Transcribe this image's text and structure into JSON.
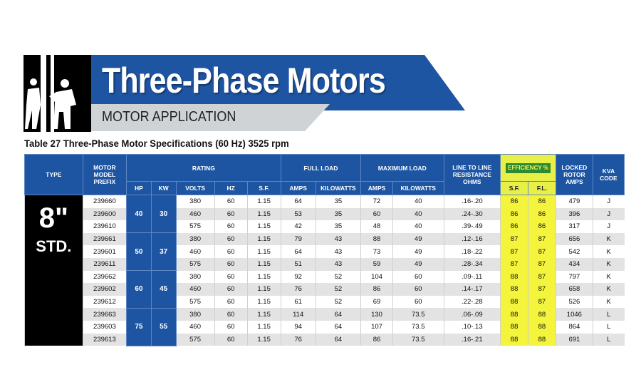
{
  "banner": {
    "title": "Three-Phase Motors",
    "subtitle": "MOTOR APPLICATION",
    "person_icon": "worker-silhouette-icon",
    "colors": {
      "blue": "#1d55a3",
      "grey": "#cfd3d6",
      "black": "#000000"
    }
  },
  "table_caption": "Table 27 Three-Phase Motor Specifications (60 Hz) 3525 rpm",
  "headers": {
    "type": "TYPE",
    "model": "MOTOR MODEL PREFIX",
    "rating": "RATING",
    "full_load": "FULL LOAD",
    "max_load": "MAXIMUM LOAD",
    "resistance": "LINE TO LINE RESISTANCE OHMS",
    "efficiency": "EFFICIENCY %",
    "locked_rotor": "LOCKED ROTOR AMPS",
    "kva": "KVA CODE",
    "hp": "HP",
    "kw": "KW",
    "volts": "VOLTS",
    "hz": "HZ",
    "sf": "S.F.",
    "fl_amps": "AMPS",
    "fl_kw": "KILOWATTS",
    "ml_amps": "AMPS",
    "ml_kw": "KILOWATTS",
    "eff_sf": "S.F.",
    "eff_fl": "F.L."
  },
  "type": {
    "size": "8\"",
    "std": "STD."
  },
  "highlight_color": "#f4f43c",
  "groups": [
    {
      "hp": "40",
      "kw": "30"
    },
    {
      "hp": "50",
      "kw": "37"
    },
    {
      "hp": "60",
      "kw": "45"
    },
    {
      "hp": "75",
      "kw": "55"
    }
  ],
  "rows": [
    {
      "model": "239660",
      "volts": "380",
      "hz": "60",
      "sf": "1.15",
      "fl_amps": "64",
      "fl_kw": "35",
      "ml_amps": "72",
      "ml_kw": "40",
      "ohms": ".16-.20",
      "eff_sf": "86",
      "eff_fl": "86",
      "lra": "479",
      "kva": "J"
    },
    {
      "model": "239600",
      "volts": "460",
      "hz": "60",
      "sf": "1.15",
      "fl_amps": "53",
      "fl_kw": "35",
      "ml_amps": "60",
      "ml_kw": "40",
      "ohms": ".24-.30",
      "eff_sf": "86",
      "eff_fl": "86",
      "lra": "396",
      "kva": "J"
    },
    {
      "model": "239610",
      "volts": "575",
      "hz": "60",
      "sf": "1.15",
      "fl_amps": "42",
      "fl_kw": "35",
      "ml_amps": "48",
      "ml_kw": "40",
      "ohms": ".39-.49",
      "eff_sf": "86",
      "eff_fl": "86",
      "lra": "317",
      "kva": "J"
    },
    {
      "model": "239661",
      "volts": "380",
      "hz": "60",
      "sf": "1.15",
      "fl_amps": "79",
      "fl_kw": "43",
      "ml_amps": "88",
      "ml_kw": "49",
      "ohms": ".12-.16",
      "eff_sf": "87",
      "eff_fl": "87",
      "lra": "656",
      "kva": "K"
    },
    {
      "model": "239601",
      "volts": "460",
      "hz": "60",
      "sf": "1.15",
      "fl_amps": "64",
      "fl_kw": "43",
      "ml_amps": "73",
      "ml_kw": "49",
      "ohms": ".18-.22",
      "eff_sf": "87",
      "eff_fl": "87",
      "lra": "542",
      "kva": "K"
    },
    {
      "model": "239611",
      "volts": "575",
      "hz": "60",
      "sf": "1.15",
      "fl_amps": "51",
      "fl_kw": "43",
      "ml_amps": "59",
      "ml_kw": "49",
      "ohms": ".28-.34",
      "eff_sf": "87",
      "eff_fl": "87",
      "lra": "434",
      "kva": "K"
    },
    {
      "model": "239662",
      "volts": "380",
      "hz": "60",
      "sf": "1.15",
      "fl_amps": "92",
      "fl_kw": "52",
      "ml_amps": "104",
      "ml_kw": "60",
      "ohms": ".09-.11",
      "eff_sf": "88",
      "eff_fl": "87",
      "lra": "797",
      "kva": "K"
    },
    {
      "model": "239602",
      "volts": "460",
      "hz": "60",
      "sf": "1.15",
      "fl_amps": "76",
      "fl_kw": "52",
      "ml_amps": "86",
      "ml_kw": "60",
      "ohms": ".14-.17",
      "eff_sf": "88",
      "eff_fl": "87",
      "lra": "658",
      "kva": "K"
    },
    {
      "model": "239612",
      "volts": "575",
      "hz": "60",
      "sf": "1.15",
      "fl_amps": "61",
      "fl_kw": "52",
      "ml_amps": "69",
      "ml_kw": "60",
      "ohms": ".22-.28",
      "eff_sf": "88",
      "eff_fl": "87",
      "lra": "526",
      "kva": "K"
    },
    {
      "model": "239663",
      "volts": "380",
      "hz": "60",
      "sf": "1.15",
      "fl_amps": "114",
      "fl_kw": "64",
      "ml_amps": "130",
      "ml_kw": "73.5",
      "ohms": ".06-.09",
      "eff_sf": "88",
      "eff_fl": "88",
      "lra": "1046",
      "kva": "L"
    },
    {
      "model": "239603",
      "volts": "460",
      "hz": "60",
      "sf": "1.15",
      "fl_amps": "94",
      "fl_kw": "64",
      "ml_amps": "107",
      "ml_kw": "73.5",
      "ohms": ".10-.13",
      "eff_sf": "88",
      "eff_fl": "88",
      "lra": "864",
      "kva": "L"
    },
    {
      "model": "239613",
      "volts": "575",
      "hz": "60",
      "sf": "1.15",
      "fl_amps": "76",
      "fl_kw": "64",
      "ml_amps": "86",
      "ml_kw": "73.5",
      "ohms": ".16-.21",
      "eff_sf": "88",
      "eff_fl": "88",
      "lra": "691",
      "kva": "L"
    }
  ]
}
